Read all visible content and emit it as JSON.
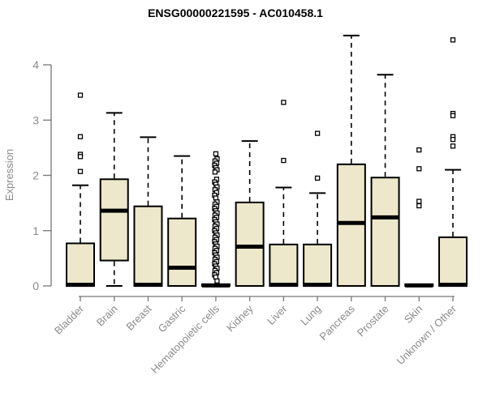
{
  "chart_data": {
    "type": "boxplot",
    "title": "ENSG00000221595 - AC010458.1",
    "ylabel": "Expression",
    "xlabel": "",
    "ylim": [
      0,
      4.6
    ],
    "yticks": [
      0,
      1,
      2,
      3,
      4
    ],
    "grid": false,
    "legend": false,
    "categories": [
      "Bladder",
      "Brain",
      "Breast",
      "Gastric",
      "Hematopoietic cells",
      "Kidney",
      "Liver",
      "Lung",
      "Pancreas",
      "Prostate",
      "Skin",
      "Unknown / Other"
    ],
    "series": [
      {
        "category": "Bladder",
        "whisker_low": 0,
        "q1": 0,
        "median": 0.02,
        "q3": 0.77,
        "whisker_high": 1.82,
        "outliers": [
          3.45,
          2.7,
          2.38,
          2.34,
          2.07
        ]
      },
      {
        "category": "Brain",
        "whisker_low": 0,
        "q1": 0.46,
        "median": 1.36,
        "q3": 1.93,
        "whisker_high": 3.13,
        "outliers": []
      },
      {
        "category": "Breast",
        "whisker_low": 0,
        "q1": 0,
        "median": 0.02,
        "q3": 1.44,
        "whisker_high": 2.69,
        "outliers": []
      },
      {
        "category": "Gastric",
        "whisker_low": 0,
        "q1": 0,
        "median": 0.33,
        "q3": 1.22,
        "whisker_high": 2.35,
        "outliers": []
      },
      {
        "category": "Hematopoietic cells",
        "whisker_low": 0,
        "q1": 0,
        "median": 0.01,
        "q3": 0.03,
        "whisker_high": 0.03,
        "outliers": [
          2.39,
          2.3,
          2.26,
          2.22,
          2.18,
          2.14,
          2.1,
          2.06,
          1.93,
          1.88,
          1.84,
          1.79,
          1.74,
          1.69,
          1.64,
          1.59,
          1.52,
          1.48,
          1.44,
          1.4,
          1.36,
          1.32,
          1.28,
          1.24,
          1.2,
          1.16,
          1.12,
          1.08,
          1.04,
          1.0,
          0.96,
          0.92,
          0.88,
          0.84,
          0.8,
          0.76,
          0.72,
          0.68,
          0.64,
          0.6,
          0.56,
          0.52,
          0.48,
          0.44,
          0.4,
          0.36,
          0.32,
          0.28,
          0.24,
          0.2,
          0.16,
          0.09
        ]
      },
      {
        "category": "Kidney",
        "whisker_low": 0,
        "q1": 0,
        "median": 0.71,
        "q3": 1.51,
        "whisker_high": 2.62,
        "outliers": []
      },
      {
        "category": "Liver",
        "whisker_low": 0,
        "q1": 0,
        "median": 0.02,
        "q3": 0.75,
        "whisker_high": 1.78,
        "outliers": [
          3.32,
          2.27
        ]
      },
      {
        "category": "Lung",
        "whisker_low": 0,
        "q1": 0,
        "median": 0.02,
        "q3": 0.75,
        "whisker_high": 1.68,
        "outliers": [
          2.76,
          1.95
        ]
      },
      {
        "category": "Pancreas",
        "whisker_low": 0,
        "q1": 0,
        "median": 1.14,
        "q3": 2.2,
        "whisker_high": 4.53,
        "outliers": []
      },
      {
        "category": "Prostate",
        "whisker_low": 0,
        "q1": 0,
        "median": 1.24,
        "q3": 1.96,
        "whisker_high": 3.82,
        "outliers": []
      },
      {
        "category": "Skin",
        "whisker_low": 0,
        "q1": 0,
        "median": 0.01,
        "q3": 0.03,
        "whisker_high": 0.03,
        "outliers": [
          2.46,
          2.12,
          1.53,
          1.45
        ]
      },
      {
        "category": "Unknown / Other",
        "whisker_low": 0,
        "q1": 0,
        "median": 0.02,
        "q3": 0.88,
        "whisker_high": 2.1,
        "outliers": [
          4.45,
          3.12,
          3.08,
          2.7,
          2.65,
          2.53
        ]
      }
    ],
    "colors": {
      "box_fill": "#EDE7CB",
      "box_border": "#000000",
      "median": "#000000",
      "whisker": "#000000",
      "axis_line": "#777777",
      "axis_text": "#8a8a8a",
      "title": "#000000",
      "background": "#ffffff"
    }
  }
}
